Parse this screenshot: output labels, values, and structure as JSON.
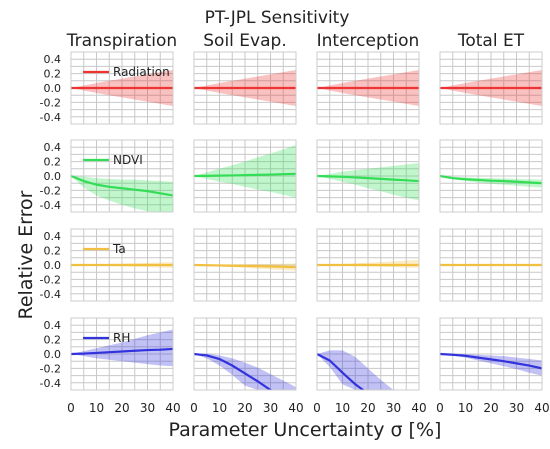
{
  "figure": {
    "title": "PT-JPL Sensitivity",
    "ylabel": "Relative Error",
    "xlabel": "Parameter Uncertainty σ [%]"
  },
  "chart_data": {
    "type": "line",
    "layout": "grid 4x4 small multiples, mean line with shaded uncertainty band",
    "columns": [
      "Transpiration",
      "Soil Evap.",
      "Interception",
      "Total ET"
    ],
    "rows": [
      {
        "name": "Radiation",
        "color": "#ee3333"
      },
      {
        "name": "NDVI",
        "color": "#33dd55"
      },
      {
        "name": "Ta",
        "color": "#f2c040"
      },
      {
        "name": "RH",
        "color": "#3333dd"
      }
    ],
    "x": [
      0,
      5,
      10,
      15,
      20,
      25,
      30,
      35,
      40
    ],
    "xlim": [
      0,
      40
    ],
    "ylim": [
      -0.5,
      0.5
    ],
    "xticks": [
      0,
      10,
      20,
      30,
      40
    ],
    "yticks": [
      -0.4,
      -0.2,
      0.0,
      0.2,
      0.4
    ],
    "grid": true,
    "legend_location": "upper-left of first column panel",
    "panels": [
      [
        {
          "mean": [
            0,
            0,
            0,
            0,
            0,
            0,
            0,
            0,
            0
          ],
          "lower": [
            0,
            -0.035,
            -0.07,
            -0.1,
            -0.13,
            -0.16,
            -0.19,
            -0.22,
            -0.25
          ],
          "upper": [
            0,
            0.035,
            0.07,
            0.1,
            0.13,
            0.16,
            0.19,
            0.22,
            0.25
          ]
        },
        {
          "mean": [
            0,
            0,
            0,
            0,
            0,
            0,
            0,
            0,
            0
          ],
          "lower": [
            0,
            -0.035,
            -0.07,
            -0.1,
            -0.13,
            -0.16,
            -0.19,
            -0.22,
            -0.25
          ],
          "upper": [
            0,
            0.035,
            0.07,
            0.1,
            0.13,
            0.16,
            0.19,
            0.22,
            0.25
          ]
        },
        {
          "mean": [
            0,
            0,
            0,
            0,
            0,
            0,
            0,
            0,
            0
          ],
          "lower": [
            0,
            -0.035,
            -0.07,
            -0.1,
            -0.13,
            -0.16,
            -0.19,
            -0.22,
            -0.25
          ],
          "upper": [
            0,
            0.035,
            0.07,
            0.1,
            0.13,
            0.16,
            0.19,
            0.22,
            0.25
          ]
        },
        {
          "mean": [
            0,
            0,
            0,
            0,
            0,
            0,
            0,
            0,
            0
          ],
          "lower": [
            0,
            -0.035,
            -0.07,
            -0.1,
            -0.13,
            -0.16,
            -0.19,
            -0.22,
            -0.25
          ],
          "upper": [
            0,
            0.035,
            0.07,
            0.1,
            0.13,
            0.16,
            0.19,
            0.22,
            0.25
          ]
        }
      ],
      [
        {
          "mean": [
            0,
            -0.07,
            -0.12,
            -0.15,
            -0.17,
            -0.19,
            -0.21,
            -0.24,
            -0.27
          ],
          "lower": [
            0,
            -0.16,
            -0.27,
            -0.34,
            -0.4,
            -0.45,
            -0.49,
            -0.52,
            -0.55
          ],
          "upper": [
            0,
            -0.01,
            -0.03,
            -0.04,
            -0.05,
            -0.05,
            -0.06,
            -0.07,
            -0.08
          ]
        },
        {
          "mean": [
            0,
            0.002,
            0.005,
            0.008,
            0.012,
            0.016,
            0.02,
            0.025,
            0.03
          ],
          "lower": [
            0,
            -0.04,
            -0.08,
            -0.11,
            -0.15,
            -0.19,
            -0.22,
            -0.26,
            -0.3
          ],
          "upper": [
            0,
            0.05,
            0.1,
            0.15,
            0.2,
            0.26,
            0.31,
            0.37,
            0.43
          ]
        },
        {
          "mean": [
            0,
            -0.005,
            -0.01,
            -0.02,
            -0.03,
            -0.04,
            -0.05,
            -0.06,
            -0.07
          ],
          "lower": [
            0,
            -0.04,
            -0.08,
            -0.12,
            -0.17,
            -0.21,
            -0.26,
            -0.3,
            -0.34
          ],
          "upper": [
            0,
            0.03,
            0.06,
            0.08,
            0.1,
            0.12,
            0.14,
            0.16,
            0.18
          ]
        },
        {
          "mean": [
            0,
            -0.03,
            -0.045,
            -0.055,
            -0.065,
            -0.07,
            -0.08,
            -0.09,
            -0.1
          ],
          "lower": [
            0,
            -0.045,
            -0.07,
            -0.09,
            -0.11,
            -0.12,
            -0.135,
            -0.15,
            -0.16
          ],
          "upper": [
            0,
            -0.01,
            -0.02,
            -0.025,
            -0.03,
            -0.035,
            -0.04,
            -0.045,
            -0.05
          ]
        }
      ],
      [
        {
          "mean": [
            0,
            0,
            0,
            0,
            0,
            0,
            0,
            0,
            0
          ],
          "lower": [
            0,
            -0.005,
            -0.01,
            -0.015,
            -0.02,
            -0.025,
            -0.03,
            -0.035,
            -0.04
          ],
          "upper": [
            0,
            0.005,
            0.01,
            0.015,
            0.02,
            0.025,
            0.03,
            0.035,
            0.04
          ]
        },
        {
          "mean": [
            0,
            -0.003,
            -0.006,
            -0.01,
            -0.013,
            -0.016,
            -0.02,
            -0.025,
            -0.03
          ],
          "lower": [
            0,
            -0.01,
            -0.02,
            -0.03,
            -0.04,
            -0.05,
            -0.06,
            -0.07,
            -0.08
          ],
          "upper": [
            0,
            0.005,
            0.008,
            0.01,
            0.012,
            0.014,
            0.016,
            0.018,
            0.02
          ]
        },
        {
          "mean": [
            0,
            0,
            0,
            0,
            0,
            0,
            0,
            0,
            0
          ],
          "lower": [
            0,
            -0.005,
            -0.01,
            -0.015,
            -0.02,
            -0.025,
            -0.03,
            -0.035,
            -0.04
          ],
          "upper": [
            0,
            0.008,
            0.016,
            0.024,
            0.032,
            0.04,
            0.05,
            0.06,
            0.07
          ]
        },
        {
          "mean": [
            0,
            0,
            0,
            0,
            0,
            0,
            0,
            0,
            0
          ],
          "lower": [
            0,
            -0.003,
            -0.006,
            -0.008,
            -0.01,
            -0.012,
            -0.014,
            -0.016,
            -0.018
          ],
          "upper": [
            0,
            0.003,
            0.006,
            0.008,
            0.01,
            0.012,
            0.014,
            0.016,
            0.018
          ]
        }
      ],
      [
        {
          "mean": [
            0,
            0.005,
            0.015,
            0.025,
            0.035,
            0.045,
            0.055,
            0.06,
            0.07
          ],
          "lower": [
            0,
            -0.03,
            -0.06,
            -0.08,
            -0.1,
            -0.12,
            -0.14,
            -0.16,
            -0.17
          ],
          "upper": [
            0,
            0.04,
            0.08,
            0.12,
            0.16,
            0.21,
            0.26,
            0.3,
            0.34
          ]
        },
        {
          "mean": [
            0,
            -0.02,
            -0.07,
            -0.16,
            -0.27,
            -0.38,
            -0.5,
            -0.6,
            -0.7
          ],
          "lower": [
            0,
            -0.06,
            -0.16,
            -0.29,
            -0.44,
            -0.59,
            -0.75,
            -0.9,
            -1.05
          ],
          "upper": [
            0,
            0.005,
            -0.02,
            -0.06,
            -0.12,
            -0.19,
            -0.28,
            -0.37,
            -0.46
          ]
        },
        {
          "mean": [
            0,
            -0.09,
            -0.26,
            -0.42,
            -0.55,
            -0.68,
            -0.8,
            -0.9,
            -1.0
          ],
          "lower": [
            0,
            -0.18,
            -0.42,
            -0.66,
            -0.88,
            -1.05,
            -1.2,
            -1.3,
            -1.4
          ],
          "upper": [
            0,
            0.05,
            0.05,
            -0.04,
            -0.2,
            -0.36,
            -0.5,
            -0.62,
            -0.72
          ]
        },
        {
          "mean": [
            0,
            -0.01,
            -0.025,
            -0.05,
            -0.075,
            -0.1,
            -0.13,
            -0.16,
            -0.2
          ],
          "lower": [
            0,
            -0.02,
            -0.05,
            -0.09,
            -0.13,
            -0.17,
            -0.21,
            -0.26,
            -0.3
          ],
          "upper": [
            0,
            0,
            0,
            -0.01,
            -0.02,
            -0.03,
            -0.05,
            -0.07,
            -0.09
          ]
        }
      ]
    ]
  }
}
